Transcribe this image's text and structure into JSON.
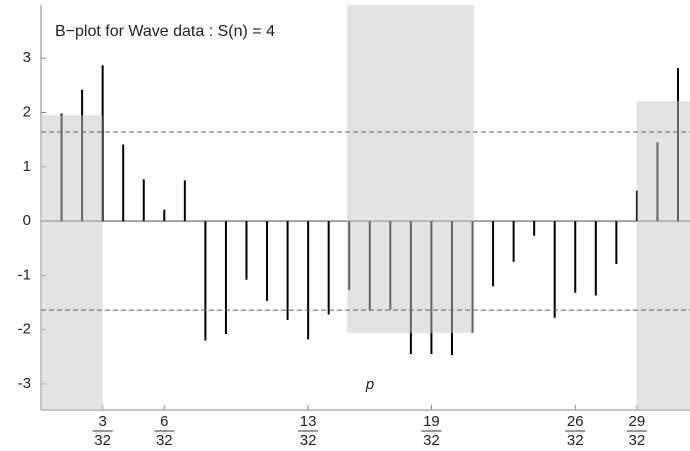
{
  "chart_data": {
    "type": "spike",
    "title": "B−plot for Wave data : S(n) = 4",
    "x_label": "p",
    "x": [
      0.03125,
      0.0625,
      0.09375,
      0.125,
      0.15625,
      0.1875,
      0.21875,
      0.25,
      0.28125,
      0.3125,
      0.34375,
      0.375,
      0.40625,
      0.4375,
      0.46875,
      0.5,
      0.53125,
      0.5625,
      0.59375,
      0.625,
      0.65625,
      0.6875,
      0.71875,
      0.75,
      0.78125,
      0.8125,
      0.84375,
      0.875,
      0.90625,
      0.9375,
      0.96875
    ],
    "values": [
      1.98,
      2.42,
      2.87,
      1.41,
      0.77,
      0.21,
      0.75,
      -2.2,
      -2.08,
      -1.08,
      -1.47,
      -1.82,
      -2.18,
      -1.72,
      -1.27,
      -1.65,
      -1.63,
      -2.45,
      -2.45,
      -2.47,
      -2.06,
      -1.2,
      -0.75,
      -0.27,
      -1.78,
      -1.32,
      -1.37,
      -0.79,
      0.56,
      1.45,
      2.82
    ],
    "color": "#000000",
    "regions": [
      {
        "x": [
          0,
          0.09375
        ],
        "y": [
          -3.48,
          1.95
        ]
      },
      {
        "x": [
          0.4656,
          0.658
        ],
        "y": [
          -2.06,
          3.98
        ]
      },
      {
        "x": [
          0.906,
          0.987
        ],
        "y": [
          -3.48,
          2.21
        ]
      }
    ],
    "region_color": "rgba(200,200,200,0.5)",
    "hlines": [
      1.64,
      -1.64
    ],
    "xlim": [
      0,
      0.987
    ],
    "ylim": [
      -3.48,
      3.98
    ],
    "yticks": [
      -3,
      -2,
      -1,
      0,
      1,
      2,
      3
    ],
    "xticks": [
      {
        "value": 0.09375,
        "label": "3/32"
      },
      {
        "value": 0.1875,
        "label": "6/32"
      },
      {
        "value": 0.40625,
        "label": "13/32"
      },
      {
        "value": 0.59375,
        "label": "19/32"
      },
      {
        "value": 0.8125,
        "label": "26/32"
      },
      {
        "value": 0.90625,
        "label": "29/32"
      }
    ]
  }
}
